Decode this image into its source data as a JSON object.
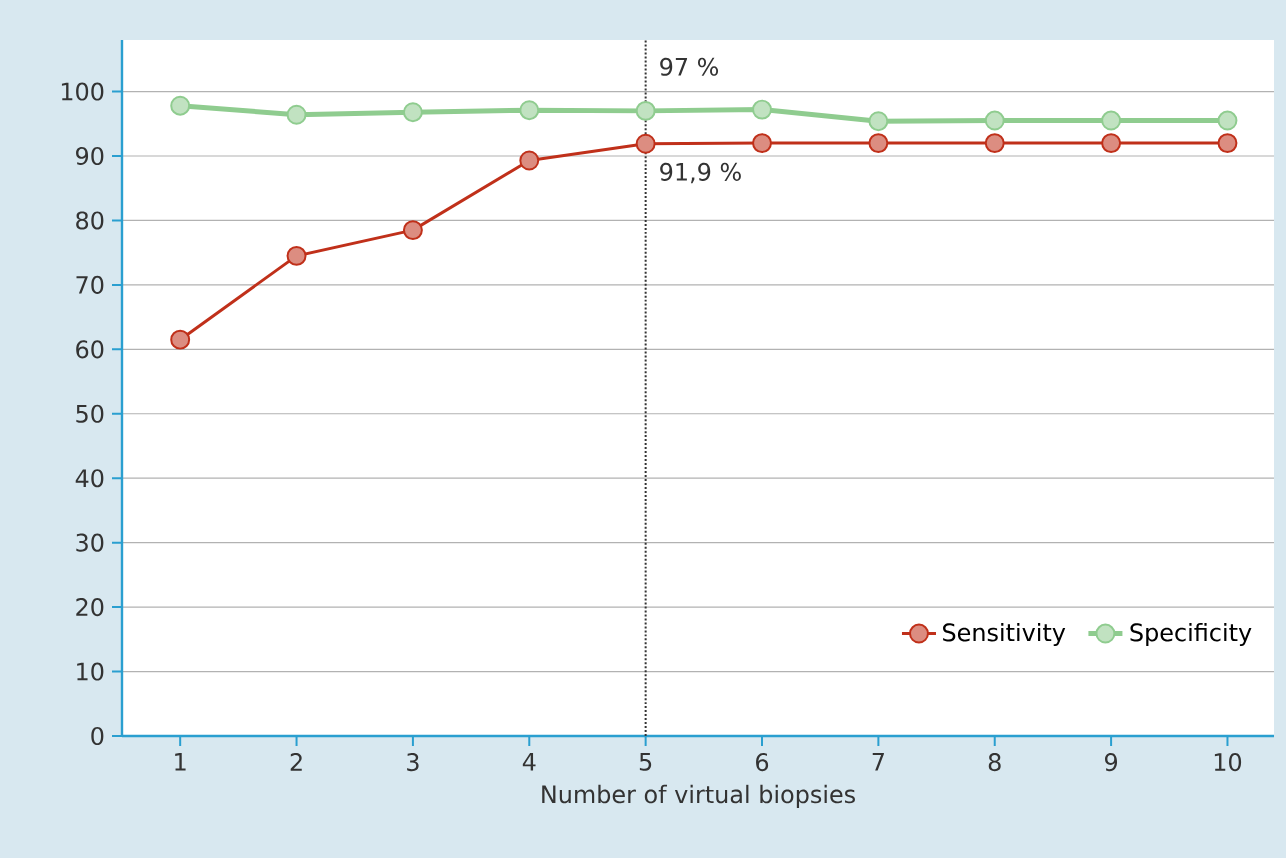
{
  "chart_data": {
    "type": "line",
    "xlabel": "Number of virtual biopsies",
    "x": [
      1,
      2,
      3,
      4,
      5,
      6,
      7,
      8,
      9,
      10
    ],
    "series": [
      {
        "name": "Sensitivity",
        "color": "#c0301a",
        "values": [
          61.5,
          74.5,
          78.5,
          89.3,
          91.9,
          92,
          92,
          92,
          92,
          92
        ]
      },
      {
        "name": "Specificity",
        "color": "#8fcc8f",
        "values": [
          97.8,
          96.4,
          96.8,
          97.1,
          97,
          97.2,
          95.4,
          95.5,
          95.5,
          95.5
        ]
      }
    ],
    "xlim": [
      0.5,
      10.4
    ],
    "ylim": [
      0,
      108
    ],
    "xticks": [
      1,
      2,
      3,
      4,
      5,
      6,
      7,
      8,
      9,
      10
    ],
    "yticks": [
      0,
      10,
      20,
      30,
      40,
      50,
      60,
      70,
      80,
      90,
      100
    ],
    "grid": "y",
    "legend": "bottom right",
    "marker": "circle",
    "line_style": "solid",
    "ref_lines": [
      {
        "axis": "x",
        "value": 5,
        "color": "#333333",
        "line_style": "dotted"
      }
    ],
    "annotations": [
      {
        "text": "97 %",
        "x": 5,
        "y": 97
      },
      {
        "text": "91,9 %",
        "x": 5,
        "y": 91.9
      }
    ]
  }
}
